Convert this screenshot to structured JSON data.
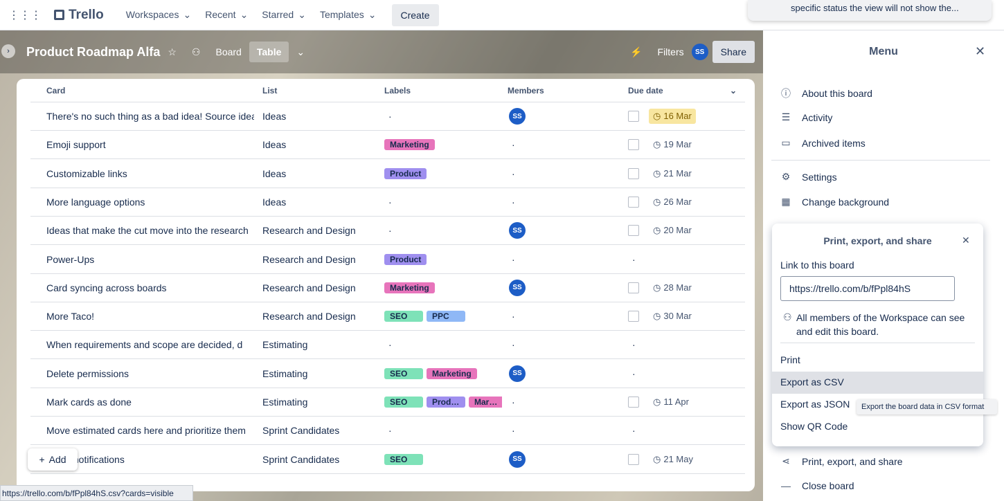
{
  "nav": {
    "logo": "Trello",
    "items": [
      "Workspaces",
      "Recent",
      "Starred",
      "Templates"
    ],
    "create": "Create"
  },
  "notice": "specific status the view will not show the...",
  "board": {
    "title": "Product Roadmap Alfa",
    "view_board": "Board",
    "view_table": "Table",
    "filters": "Filters",
    "avatar": "SS",
    "share": "Share"
  },
  "table": {
    "columns": [
      "Card",
      "List",
      "Labels",
      "Members",
      "Due date"
    ],
    "empty_marker": "·",
    "rows": [
      {
        "card": "There's no such thing as a bad idea! Source ideas",
        "list": "Ideas",
        "labels": [],
        "member": "SS",
        "due": "16 Mar",
        "due_soon": true
      },
      {
        "card": "Emoji support",
        "list": "Ideas",
        "labels": [
          {
            "name": "Marketing",
            "color": "#e774bb"
          }
        ],
        "member": null,
        "due": "19 Mar"
      },
      {
        "card": "Customizable links",
        "list": "Ideas",
        "labels": [
          {
            "name": "Product",
            "color": "#9f8fef"
          }
        ],
        "member": null,
        "due": "21 Mar"
      },
      {
        "card": "More language options",
        "list": "Ideas",
        "labels": [],
        "member": null,
        "due": "26 Mar"
      },
      {
        "card": "Ideas that make the cut move into the research",
        "list": "Research and Design",
        "labels": [],
        "member": "SS",
        "due": "20 Mar"
      },
      {
        "card": "Power-Ups",
        "list": "Research and Design",
        "labels": [
          {
            "name": "Product",
            "color": "#9f8fef"
          }
        ],
        "member": null,
        "due": null
      },
      {
        "card": "Card syncing across boards",
        "list": "Research and Design",
        "labels": [
          {
            "name": "Marketing",
            "color": "#e774bb"
          }
        ],
        "member": "SS",
        "due": "28 Mar"
      },
      {
        "card": "More Taco!",
        "list": "Research and Design",
        "labels": [
          {
            "name": "SEO",
            "color": "#7ee2b8"
          },
          {
            "name": "PPC",
            "color": "#8fb8f6"
          }
        ],
        "member": null,
        "due": "30 Mar"
      },
      {
        "card": "When requirements and scope are decided, d",
        "list": "Estimating",
        "labels": [],
        "member": null,
        "due": null
      },
      {
        "card": "Delete permissions",
        "list": "Estimating",
        "labels": [
          {
            "name": "SEO",
            "color": "#7ee2b8"
          },
          {
            "name": "Marketing",
            "color": "#e774bb"
          }
        ],
        "member": "SS",
        "due": null
      },
      {
        "card": "Mark cards as done",
        "list": "Estimating",
        "labels": [
          {
            "name": "SEO",
            "color": "#7ee2b8"
          },
          {
            "name": "Product",
            "color": "#9f8fef"
          },
          {
            "name": "Marketing",
            "color": "#e774bb"
          }
        ],
        "member": null,
        "due": "11 Apr"
      },
      {
        "card": "Move estimated cards here and prioritize them",
        "list": "Sprint Candidates",
        "labels": [],
        "member": null,
        "due": null
      },
      {
        "card": "Email notifications",
        "list": "Sprint Candidates",
        "labels": [
          {
            "name": "SEO",
            "color": "#7ee2b8"
          }
        ],
        "member": "SS",
        "due": "21 May"
      }
    ],
    "add": "Add"
  },
  "menu": {
    "title": "Menu",
    "items": [
      "About this board",
      "Activity",
      "Archived items",
      "Settings",
      "Change background"
    ],
    "popup": {
      "title": "Print, export, and share",
      "link_label": "Link to this board",
      "url": "https://trello.com/b/fPpl84hS",
      "note": "All members of the Workspace can see and edit this board.",
      "options": [
        "Print",
        "Export as CSV",
        "Export as JSON",
        "Show QR Code"
      ],
      "tooltip": "Export the board data in CSV format"
    },
    "bottom_items": [
      "Print, export, and share",
      "Close board"
    ]
  },
  "status_url": "https://trello.com/b/fPpl84hS.csv?cards=visible"
}
